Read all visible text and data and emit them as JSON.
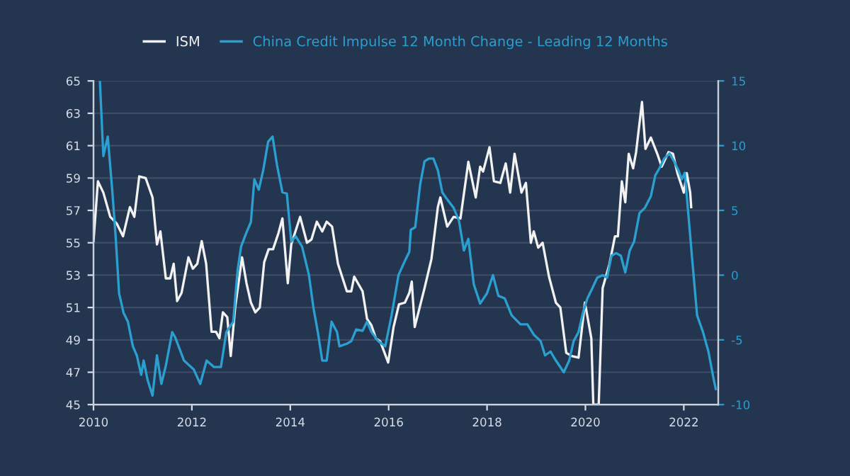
{
  "chart_data": {
    "type": "line",
    "legend": "top",
    "grid": "y",
    "line_style": "solid",
    "marker": "none",
    "xlim": [
      2010,
      2022.7
    ],
    "xticks": [
      2010,
      2012,
      2014,
      2016,
      2018,
      2020,
      2022
    ],
    "ylim": [
      45,
      65
    ],
    "yticks": [
      45,
      47,
      49,
      51,
      53,
      55,
      57,
      59,
      61,
      63,
      65
    ],
    "y2lim": [
      -10,
      15
    ],
    "y2ticks": [
      {
        "value": -10,
        "label": "-10"
      },
      {
        "value": -5,
        "label": "-5"
      },
      0,
      5,
      10,
      15
    ],
    "series": [
      {
        "name": "ISM",
        "color": "#f2f2f2",
        "x": [
          2010.0,
          2010.09,
          2010.2,
          2010.34,
          2010.47,
          2010.6,
          2010.74,
          2010.83,
          2010.93,
          2011.06,
          2011.2,
          2011.29,
          2011.36,
          2011.47,
          2011.56,
          2011.63,
          2011.7,
          2011.79,
          2011.93,
          2012.02,
          2012.11,
          2012.2,
          2012.29,
          2012.4,
          2012.49,
          2012.56,
          2012.63,
          2012.72,
          2012.79,
          2012.88,
          2013.02,
          2013.11,
          2013.2,
          2013.29,
          2013.38,
          2013.47,
          2013.56,
          2013.65,
          2013.76,
          2013.84,
          2013.95,
          2014.02,
          2014.2,
          2014.34,
          2014.43,
          2014.54,
          2014.65,
          2014.74,
          2014.85,
          2014.97,
          2015.15,
          2015.24,
          2015.3,
          2015.47,
          2015.56,
          2015.65,
          2015.74,
          2015.83,
          2015.99,
          2016.1,
          2016.21,
          2016.33,
          2016.42,
          2016.47,
          2016.53,
          2016.73,
          2016.87,
          2017.0,
          2017.05,
          2017.19,
          2017.32,
          2017.46,
          2017.62,
          2017.77,
          2017.86,
          2017.92,
          2018.05,
          2018.14,
          2018.27,
          2018.38,
          2018.47,
          2018.56,
          2018.7,
          2018.79,
          2018.89,
          2018.95,
          2019.04,
          2019.13,
          2019.26,
          2019.4,
          2019.49,
          2019.61,
          2019.72,
          2019.86,
          2019.99,
          2020.12,
          2020.16,
          2020.27,
          2020.35,
          2020.49,
          2020.6,
          2020.66,
          2020.74,
          2020.81,
          2020.88,
          2020.97,
          2021.03,
          2021.15,
          2021.22,
          2021.33,
          2021.46,
          2021.55,
          2021.69,
          2021.78,
          2021.87,
          2022.0,
          2022.06,
          2022.13,
          2022.15
        ],
        "values": [
          55.1,
          58.8,
          58.1,
          56.6,
          56.2,
          55.4,
          57.2,
          56.6,
          59.1,
          59.0,
          57.8,
          54.9,
          55.7,
          52.8,
          52.8,
          53.7,
          51.4,
          51.9,
          54.1,
          53.4,
          53.7,
          55.1,
          53.7,
          49.5,
          49.5,
          49.1,
          50.7,
          50.4,
          48.0,
          51.0,
          54.1,
          52.5,
          51.3,
          50.7,
          51.0,
          53.8,
          54.6,
          54.6,
          55.6,
          56.5,
          52.5,
          54.9,
          56.6,
          55.0,
          55.2,
          56.3,
          55.7,
          56.3,
          56.0,
          53.7,
          52.0,
          52.0,
          52.9,
          52.0,
          50.3,
          49.9,
          49.1,
          48.9,
          47.6,
          49.8,
          51.2,
          51.3,
          51.9,
          52.6,
          49.8,
          52.2,
          54.0,
          57.2,
          57.8,
          56.0,
          56.6,
          56.5,
          60.0,
          57.8,
          59.7,
          59.4,
          60.9,
          58.8,
          58.7,
          59.9,
          58.1,
          60.5,
          58.1,
          58.7,
          55.0,
          55.7,
          54.7,
          55.0,
          52.9,
          51.3,
          51.0,
          48.2,
          48.0,
          47.9,
          51.3,
          49.1,
          45,
          45,
          52.2,
          53.7,
          55.4,
          55.4,
          58.8,
          57.5,
          60.5,
          59.6,
          60.6,
          63.7,
          60.8,
          61.5,
          60.5,
          59.7,
          60.6,
          60.5,
          59.3,
          58.1,
          59.3,
          58.1,
          57.2
        ]
      },
      {
        "name": "China Credit Impulse 12 Month Change - Leading 12 Months",
        "color": "#2a9fd0",
        "axis": "y2",
        "x": [
          2010.13,
          2010.2,
          2010.29,
          2010.38,
          2010.45,
          2010.52,
          2010.61,
          2010.7,
          2010.8,
          2010.88,
          2010.97,
          2011.02,
          2011.1,
          2011.2,
          2011.29,
          2011.38,
          2011.47,
          2011.6,
          2011.66,
          2011.84,
          2012.04,
          2012.17,
          2012.3,
          2012.45,
          2012.59,
          2012.7,
          2012.84,
          2012.93,
          2013.0,
          2013.11,
          2013.2,
          2013.27,
          2013.36,
          2013.45,
          2013.55,
          2013.64,
          2013.73,
          2013.84,
          2013.93,
          2014.02,
          2014.11,
          2014.24,
          2014.38,
          2014.47,
          2014.56,
          2014.65,
          2014.74,
          2014.84,
          2014.95,
          2015.0,
          2015.15,
          2015.24,
          2015.34,
          2015.47,
          2015.56,
          2015.65,
          2015.79,
          2015.93,
          2016.06,
          2016.2,
          2016.33,
          2016.42,
          2016.45,
          2016.54,
          2016.64,
          2016.73,
          2016.82,
          2016.91,
          2017.0,
          2017.09,
          2017.18,
          2017.32,
          2017.43,
          2017.53,
          2017.62,
          2017.73,
          2017.86,
          2018.0,
          2018.12,
          2018.23,
          2018.36,
          2018.5,
          2018.68,
          2018.82,
          2018.95,
          2019.09,
          2019.18,
          2019.29,
          2019.4,
          2019.56,
          2019.67,
          2019.76,
          2019.86,
          2019.95,
          2020.04,
          2020.13,
          2020.24,
          2020.35,
          2020.44,
          2020.53,
          2020.62,
          2020.72,
          2020.81,
          2020.9,
          2020.99,
          2021.1,
          2021.21,
          2021.33,
          2021.42,
          2021.51,
          2021.6,
          2021.71,
          2021.8,
          2021.89,
          2021.96,
          2022.02,
          2022.09,
          2022.18,
          2022.27,
          2022.39,
          2022.5,
          2022.61,
          2022.65
        ],
        "values": [
          15.0,
          9.2,
          10.7,
          6.6,
          3.0,
          -1.4,
          -2.9,
          -3.6,
          -5.5,
          -6.2,
          -7.7,
          -6.6,
          -8.1,
          -9.3,
          -6.2,
          -8.4,
          -7.0,
          -4.4,
          -4.8,
          -6.6,
          -7.3,
          -8.4,
          -6.6,
          -7.1,
          -7.1,
          -4.4,
          -3.6,
          0.4,
          2.2,
          3.3,
          4.1,
          7.4,
          6.6,
          8.1,
          10.3,
          10.7,
          8.5,
          6.4,
          6.3,
          2.6,
          3.0,
          2.2,
          0.0,
          -2.5,
          -4.4,
          -6.6,
          -6.6,
          -3.6,
          -4.4,
          -5.5,
          -5.3,
          -5.1,
          -4.2,
          -4.3,
          -3.6,
          -4.4,
          -5.1,
          -5.5,
          -3.1,
          0.0,
          1.1,
          1.8,
          3.5,
          3.7,
          7.0,
          8.8,
          9.0,
          9.0,
          8.1,
          6.4,
          5.9,
          5.2,
          4.2,
          1.9,
          2.8,
          -0.7,
          -2.2,
          -1.4,
          0.0,
          -1.6,
          -1.8,
          -3.1,
          -3.8,
          -3.8,
          -4.6,
          -5.1,
          -6.2,
          -5.9,
          -6.6,
          -7.5,
          -6.6,
          -5.1,
          -4.4,
          -2.9,
          -1.8,
          -1.1,
          -0.2,
          0.0,
          -0.2,
          1.5,
          1.7,
          1.5,
          0.2,
          1.9,
          2.6,
          4.8,
          5.2,
          6.1,
          7.7,
          8.3,
          9.0,
          9.4,
          8.8,
          8.1,
          7.4,
          7.9,
          4.8,
          0.8,
          -3.1,
          -4.4,
          -5.9,
          -8.1,
          -8.8
        ]
      }
    ]
  }
}
